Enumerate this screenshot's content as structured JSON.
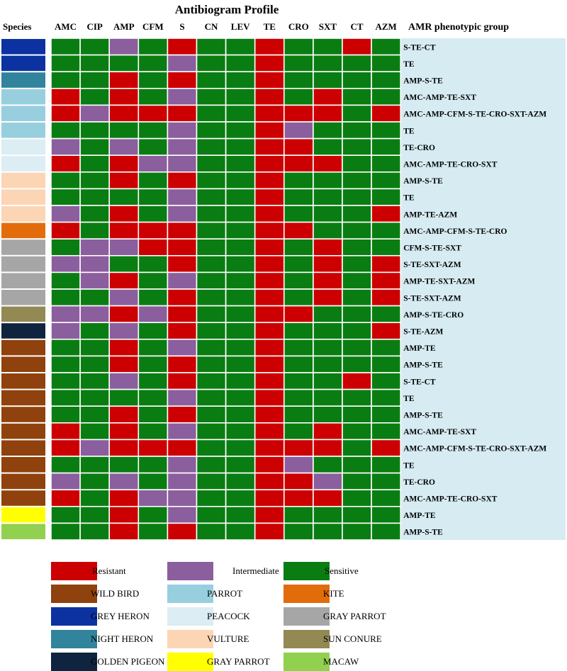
{
  "chart_data": {
    "type": "heatmap",
    "title": "Antibiogram Profile",
    "species_header": "Species",
    "group_header": "AMR phenotypic group",
    "columns": [
      "AMC",
      "CIP",
      "AMP",
      "CFM",
      "S",
      "CN",
      "LEV",
      "TE",
      "CRO",
      "SXT",
      "CT",
      "AZM"
    ],
    "value_key": {
      "R": "Resistant",
      "I": "Intermediate",
      "S": "Sensitive"
    },
    "rows": [
      {
        "species": "GREY HERON",
        "group": "S-TE-CT",
        "values": [
          "S",
          "S",
          "I",
          "S",
          "R",
          "S",
          "S",
          "R",
          "S",
          "S",
          "R",
          "S"
        ]
      },
      {
        "species": "GREY HERON",
        "group": "TE",
        "values": [
          "S",
          "S",
          "S",
          "S",
          "I",
          "S",
          "S",
          "R",
          "S",
          "S",
          "S",
          "S"
        ]
      },
      {
        "species": "NIGHT HERON",
        "group": "AMP-S-TE",
        "values": [
          "S",
          "S",
          "R",
          "S",
          "R",
          "S",
          "S",
          "R",
          "S",
          "S",
          "S",
          "S"
        ]
      },
      {
        "species": "PARROT",
        "group": "AMC-AMP-TE-SXT",
        "values": [
          "R",
          "S",
          "R",
          "S",
          "I",
          "S",
          "S",
          "R",
          "S",
          "R",
          "S",
          "S"
        ]
      },
      {
        "species": "PARROT",
        "group": "AMC-AMP-CFM-S-TE-CRO-SXT-AZM",
        "values": [
          "R",
          "I",
          "R",
          "R",
          "R",
          "S",
          "S",
          "R",
          "R",
          "R",
          "S",
          "R"
        ]
      },
      {
        "species": "PARROT",
        "group": "TE",
        "values": [
          "S",
          "S",
          "S",
          "S",
          "I",
          "S",
          "S",
          "R",
          "I",
          "S",
          "S",
          "S"
        ]
      },
      {
        "species": "PEACOCK",
        "group": "TE-CRO",
        "values": [
          "I",
          "S",
          "I",
          "S",
          "I",
          "S",
          "S",
          "R",
          "R",
          "S",
          "S",
          "S"
        ]
      },
      {
        "species": "PEACOCK",
        "group": "AMC-AMP-TE-CRO-SXT",
        "values": [
          "R",
          "S",
          "R",
          "I",
          "I",
          "S",
          "S",
          "R",
          "R",
          "R",
          "S",
          "S"
        ]
      },
      {
        "species": "VULTURE",
        "group": "AMP-S-TE",
        "values": [
          "S",
          "S",
          "R",
          "S",
          "R",
          "S",
          "S",
          "R",
          "S",
          "S",
          "S",
          "S"
        ]
      },
      {
        "species": "VULTURE",
        "group": "TE",
        "values": [
          "S",
          "S",
          "S",
          "S",
          "I",
          "S",
          "S",
          "R",
          "S",
          "S",
          "S",
          "S"
        ]
      },
      {
        "species": "VULTURE",
        "group": "AMP-TE-AZM",
        "values": [
          "I",
          "S",
          "R",
          "S",
          "I",
          "S",
          "S",
          "R",
          "S",
          "S",
          "S",
          "R"
        ]
      },
      {
        "species": "KITE",
        "group": "AMC-AMP-CFM-S-TE-CRO",
        "values": [
          "R",
          "S",
          "R",
          "R",
          "R",
          "S",
          "S",
          "R",
          "R",
          "S",
          "S",
          "S"
        ]
      },
      {
        "species": "GRAY PARROT",
        "group": "CFM-S-TE-SXT",
        "values": [
          "S",
          "I",
          "I",
          "R",
          "R",
          "S",
          "S",
          "R",
          "S",
          "R",
          "S",
          "S"
        ]
      },
      {
        "species": "GRAY PARROT",
        "group": "S-TE-SXT-AZM",
        "values": [
          "I",
          "I",
          "S",
          "S",
          "R",
          "S",
          "S",
          "R",
          "S",
          "R",
          "S",
          "R"
        ]
      },
      {
        "species": "GRAY PARROT",
        "group": "AMP-TE-SXT-AZM",
        "values": [
          "S",
          "I",
          "R",
          "S",
          "I",
          "S",
          "S",
          "R",
          "S",
          "R",
          "S",
          "R"
        ]
      },
      {
        "species": "GRAY PARROT",
        "group": "S-TE-SXT-AZM",
        "values": [
          "S",
          "S",
          "I",
          "S",
          "R",
          "S",
          "S",
          "R",
          "S",
          "R",
          "S",
          "R"
        ]
      },
      {
        "species": "SUN CONURE",
        "group": "AMP-S-TE-CRO",
        "values": [
          "I",
          "I",
          "R",
          "I",
          "R",
          "S",
          "S",
          "R",
          "R",
          "S",
          "S",
          "S"
        ]
      },
      {
        "species": "GOLDEN PIGEON",
        "group": "S-TE-AZM",
        "values": [
          "I",
          "S",
          "I",
          "S",
          "R",
          "S",
          "S",
          "R",
          "S",
          "S",
          "S",
          "R"
        ]
      },
      {
        "species": "WILD BIRD",
        "group": "AMP-TE",
        "values": [
          "S",
          "S",
          "R",
          "S",
          "I",
          "S",
          "S",
          "R",
          "S",
          "S",
          "S",
          "S"
        ]
      },
      {
        "species": "WILD BIRD",
        "group": "AMP-S-TE",
        "values": [
          "S",
          "S",
          "R",
          "S",
          "R",
          "S",
          "S",
          "R",
          "S",
          "S",
          "S",
          "S"
        ]
      },
      {
        "species": "WILD BIRD",
        "group": "S-TE-CT",
        "values": [
          "S",
          "S",
          "I",
          "S",
          "R",
          "S",
          "S",
          "R",
          "S",
          "S",
          "R",
          "S"
        ]
      },
      {
        "species": "WILD BIRD",
        "group": "TE",
        "values": [
          "S",
          "S",
          "S",
          "S",
          "I",
          "S",
          "S",
          "R",
          "S",
          "S",
          "S",
          "S"
        ]
      },
      {
        "species": "WILD BIRD",
        "group": "AMP-S-TE",
        "values": [
          "S",
          "S",
          "R",
          "S",
          "R",
          "S",
          "S",
          "R",
          "S",
          "S",
          "S",
          "S"
        ]
      },
      {
        "species": "WILD BIRD",
        "group": "AMC-AMP-TE-SXT",
        "values": [
          "R",
          "S",
          "R",
          "S",
          "I",
          "S",
          "S",
          "R",
          "S",
          "R",
          "S",
          "S"
        ]
      },
      {
        "species": "WILD BIRD",
        "group": "AMC-AMP-CFM-S-TE-CRO-SXT-AZM",
        "values": [
          "R",
          "I",
          "R",
          "R",
          "R",
          "S",
          "S",
          "R",
          "R",
          "R",
          "S",
          "R"
        ]
      },
      {
        "species": "WILD BIRD",
        "group": "TE",
        "values": [
          "S",
          "S",
          "S",
          "S",
          "I",
          "S",
          "S",
          "R",
          "I",
          "S",
          "S",
          "S"
        ]
      },
      {
        "species": "WILD BIRD",
        "group": "TE-CRO",
        "values": [
          "I",
          "S",
          "I",
          "S",
          "I",
          "S",
          "S",
          "R",
          "R",
          "I",
          "S",
          "S"
        ]
      },
      {
        "species": "WILD BIRD",
        "group": "AMC-AMP-TE-CRO-SXT",
        "values": [
          "R",
          "S",
          "R",
          "I",
          "I",
          "S",
          "S",
          "R",
          "R",
          "R",
          "S",
          "S"
        ]
      },
      {
        "species": "GRAY PARROT",
        "group": "AMP-TE",
        "values": [
          "S",
          "S",
          "R",
          "S",
          "I",
          "S",
          "S",
          "R",
          "S",
          "S",
          "S",
          "S"
        ]
      },
      {
        "species": "MACAW",
        "group": "AMP-S-TE",
        "values": [
          "S",
          "S",
          "R",
          "S",
          "R",
          "S",
          "S",
          "R",
          "S",
          "S",
          "S",
          "S"
        ]
      }
    ],
    "value_colors": {
      "R": "#cc0000",
      "I": "#8b5e9e",
      "S": "#0a7d12"
    },
    "group_bg_color": "#d6ebf2",
    "species_legend": [
      {
        "label": "WILD BIRD",
        "color": "#8f420d"
      },
      {
        "label": "PARROT",
        "color": "#98cfdf"
      },
      {
        "label": "KITE",
        "color": "#e36c0a"
      },
      {
        "label": "GREY HERON",
        "color": "#0b32a0"
      },
      {
        "label": "PEACOCK",
        "color": "#dcedf3"
      },
      {
        "label": "GRAY PARROT",
        "color": "#a6a6a6"
      },
      {
        "label": "NIGHT HERON",
        "color": "#31849b"
      },
      {
        "label": "VULTURE",
        "color": "#fcd5b4"
      },
      {
        "label": "SUN CONURE",
        "color": "#938953"
      },
      {
        "label": "GOLDEN PIGEON",
        "color": "#0f243e"
      },
      {
        "label": "GRAY PARROT",
        "color": "#ffff00"
      },
      {
        "label": "MACAW",
        "color": "#92d050"
      }
    ],
    "row_species_colors": [
      "#0b32a0",
      "#0b32a0",
      "#31849b",
      "#98cfdf",
      "#98cfdf",
      "#98cfdf",
      "#dcedf3",
      "#dcedf3",
      "#fcd5b4",
      "#fcd5b4",
      "#fcd5b4",
      "#e36c0a",
      "#a6a6a6",
      "#a6a6a6",
      "#a6a6a6",
      "#a6a6a6",
      "#938953",
      "#0f243e",
      "#8f420d",
      "#8f420d",
      "#8f420d",
      "#8f420d",
      "#8f420d",
      "#8f420d",
      "#8f420d",
      "#8f420d",
      "#8f420d",
      "#8f420d",
      "#ffff00",
      "#92d050"
    ]
  }
}
